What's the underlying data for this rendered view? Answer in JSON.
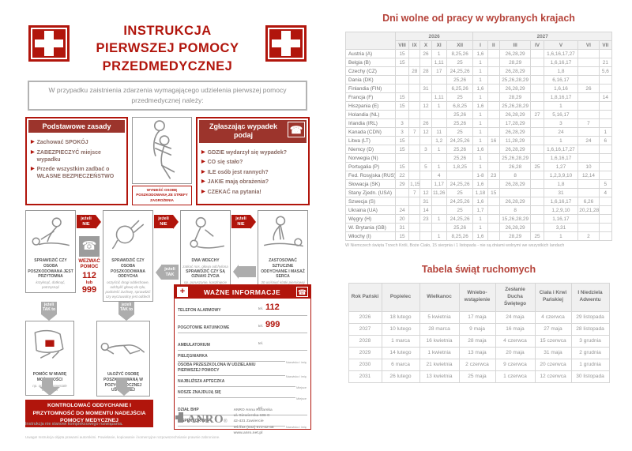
{
  "poster": {
    "title_lines": [
      "INSTRUKCJA",
      "PIERWSZEJ POMOCY",
      "PRZEDMEDYCZNEJ"
    ],
    "intro": "W przypadku zaistnienia zdarzenia wymagającego udzielenia pierwszej pomocy przedmedycznej należy:",
    "basic_rules": {
      "title": "Podstawowe zasady",
      "items": [
        "Zachować SPOKÓJ",
        "ZABEZPIECZYĆ miejsce wypadku",
        "Przede wszystkim zadbać o WŁASNE BEZPIECZEŃSTWO"
      ]
    },
    "evacuate_caption": "WYNIEŚĆ OSOBĘ POSZKODOWANĄ ZE STREFY ZAGROŻENIA",
    "report": {
      "title": "Zgłaszając wypadek podaj",
      "items": [
        "GDZIE wydarzył się wypadek?",
        "CO się stało?",
        "ILE osób jest rannych?",
        "JAKIE mają obrażenia?",
        "CZEKAĆ na pytania!"
      ]
    },
    "flow": {
      "if_no": "jeżeli NIE",
      "if_yes": "jeżeli TAK",
      "if_yes_then": "jeżeli TAK to",
      "call_help": {
        "label": "WEZWAĆ POMOC",
        "num1": "112",
        "or": "lub",
        "num2": "999"
      },
      "step1": {
        "title": "SPRAWDZIĆ CZY OSOBA POSZKODOWANA JEST PRZYTOMNA",
        "sub": "krzyknąć, dotknąć, potrząsnąć"
      },
      "step2": {
        "title": "SPRAWDZIĆ CZY OSOBA POSZKODOWANA ODDYCHA",
        "sub": "oczyścić drogi oddechowe, odchylić głowę do tyłu, podnieść żuchwę, sprawdzić czy wyczuwalny jest oddech"
      },
      "step3": {
        "title": "DWA WDECHY",
        "sub": "zatkać nos, głowa odchylona",
        "title2": "SPRAWDZIĆ CZY SĄ OZNAKI ŻYCIA",
        "sub2": "np. poruszanie, kaszlnięcie"
      },
      "step4": {
        "title": "ZASTOSOWAĆ SZTUCZNE ODDYCHANIE I MASAŻ SERCA",
        "sub": "30 uciśnięć klatki piersiowej na zmianę z 2 wdechami"
      },
      "step5": {
        "title": "POMÓC W MIARĘ MOŻLIWOŚCI",
        "sub": "np. opatrzyć powstałe obrażenia"
      },
      "step6": {
        "title": "UŁOŻYĆ OSOBĘ POSZKODOWANĄ W POZYCJI BOCZNEJ USTALONEJ"
      }
    },
    "important_info": {
      "title": "WAŻNE INFORMACJE",
      "rows": [
        {
          "label": "TELEFON ALARMOWY",
          "tel": "tel.",
          "value": "112",
          "note": ""
        },
        {
          "label": "POGOTOWIE RATUNKOWE",
          "tel": "tel.",
          "value": "999",
          "note": ""
        },
        {
          "label": "AMBULATORIUM",
          "tel": "tel.",
          "value": "",
          "note": ""
        },
        {
          "label": "PIELĘGNIARKA",
          "tel": "",
          "value": "",
          "note": "Nazwisko i imię"
        },
        {
          "label": "OSOBA PRZESZKOLONA W UDZIELANIU PIERWSZEJ POMOCY",
          "tel": "",
          "value": "",
          "note": "Nazwisko i imię"
        },
        {
          "label": "NAJBLIŻSZA APTECZKA",
          "tel": "",
          "value": "",
          "note": "Miejsce"
        },
        {
          "label": "NOSZE ZNAJDUJĄ SIĘ",
          "tel": "",
          "value": "",
          "note": "Miejsce"
        },
        {
          "label": "DZIAŁ BHP",
          "tel": "tel.",
          "value": "",
          "note": ""
        },
        {
          "label": "INSPEKTOR BHP",
          "tel": "",
          "value": "",
          "note": "Nazwisko i imię"
        }
      ]
    },
    "control_banner": "KONTROLOWAĆ ODDYCHANIE I PRZYTOMNOŚĆ DO MOMENTU NADEJŚCIA POMOCY MEDYCZNEJ",
    "note": "Instrukcja nie stanowi kompleksowego rozwiązania.",
    "copyright": "Uwaga! Instrukcja objęta prawami autorskimi. Powielanie, kopiowanie i komercyjne rozpowszechnianie prawnie zabronione.",
    "brand": {
      "name": "ANRO",
      "reg": "®",
      "address_lines": [
        "ANRO Anna Rotarska",
        "ul. Siewierska 196 C",
        "42-431 Zawiercie",
        "tel./fax (032) 672-42-48",
        "www.anro.net.pl"
      ]
    }
  },
  "holidays_table": {
    "title": "Dni wolne od pracy w wybranych krajach",
    "year1": "2026",
    "year2": "2027",
    "months_2026": [
      "VIII",
      "IX",
      "X",
      "XI",
      "XII"
    ],
    "months_2027": [
      "I",
      "II",
      "III",
      "IV",
      "V",
      "VI",
      "VII"
    ],
    "rows": [
      {
        "country": "Austria (A)",
        "cells": [
          "15",
          "",
          "26",
          "1",
          "8,25,26",
          "1,6",
          "",
          "26,28,29",
          "",
          "1,6,16,17,27",
          "",
          ""
        ]
      },
      {
        "country": "Belgia (B)",
        "cells": [
          "15",
          "",
          "",
          "1,11",
          "25",
          "1",
          "",
          "28,29",
          "",
          "1,6,16,17",
          "",
          "21"
        ]
      },
      {
        "country": "Czechy (CZ)",
        "cells": [
          "",
          "28",
          "28",
          "17",
          "24,25,26",
          "1",
          "",
          "26,28,29",
          "",
          "1,8",
          "",
          "5,6"
        ]
      },
      {
        "country": "Dania (DK)",
        "cells": [
          "",
          "",
          "",
          "",
          "25,26",
          "1",
          "",
          "25,26,28,29",
          "",
          "6,16,17",
          "",
          ""
        ]
      },
      {
        "country": "Finlandia (FIN)",
        "cells": [
          "",
          "",
          "31",
          "",
          "6,25,26",
          "1,6",
          "",
          "26,28,29",
          "",
          "1,6,16",
          "26",
          ""
        ]
      },
      {
        "country": "Francja (F)",
        "cells": [
          "15",
          "",
          "",
          "1,11",
          "25",
          "1",
          "",
          "28,29",
          "",
          "1,8,16,17",
          "",
          "14"
        ]
      },
      {
        "country": "Hiszpania (E)",
        "cells": [
          "15",
          "",
          "12",
          "1",
          "6,8,25",
          "1,6",
          "",
          "25,26,28,29",
          "",
          "1",
          "",
          ""
        ]
      },
      {
        "country": "Holandia (NL)",
        "cells": [
          "",
          "",
          "",
          "",
          "25,26",
          "1",
          "",
          "26,28,29",
          "27",
          "5,16,17",
          "",
          ""
        ]
      },
      {
        "country": "Irlandia (IRL)",
        "cells": [
          "3",
          "",
          "26",
          "",
          "25,26",
          "1",
          "",
          "17,28,29",
          "",
          "3",
          "7",
          ""
        ]
      },
      {
        "country": "Kanada (CDN)",
        "cells": [
          "3",
          "7",
          "12",
          "11",
          "25",
          "1",
          "",
          "26,28,29",
          "",
          "24",
          "",
          "1"
        ]
      },
      {
        "country": "Litwa (LT)",
        "cells": [
          "15",
          "",
          "",
          "1,2",
          "24,25,26",
          "1",
          "16",
          "11,28,29",
          "",
          "1",
          "24",
          "6"
        ]
      },
      {
        "country": "Niemcy (D)",
        "cells": [
          "15",
          "",
          "3",
          "1",
          "25,26",
          "1,6",
          "",
          "26,28,29",
          "",
          "1,6,16,17,27",
          "",
          ""
        ]
      },
      {
        "country": "Norwegia (N)",
        "cells": [
          "",
          "",
          "",
          "",
          "25,26",
          "1",
          "",
          "25,26,28,29",
          "",
          "1,6,16,17",
          "",
          ""
        ]
      },
      {
        "country": "Portugalia (P)",
        "cells": [
          "15",
          "",
          "5",
          "1",
          "1,8,25",
          "1",
          "",
          "26,28",
          "25",
          "1,27",
          "10",
          ""
        ]
      },
      {
        "country": "Fed. Rosyjska (RUS)",
        "cells": [
          "22",
          "",
          "",
          "4",
          "",
          "1-8",
          "23",
          "8",
          "",
          "1,2,3,9,10",
          "12,14",
          ""
        ]
      },
      {
        "country": "Słowacja (SK)",
        "cells": [
          "29",
          "1,15",
          "",
          "1,17",
          "24,25,26",
          "1,6",
          "",
          "26,28,29",
          "",
          "1,8",
          "",
          "5"
        ]
      },
      {
        "country": "Stany Zjedn. (USA)",
        "cells": [
          "",
          "7",
          "12",
          "11,26",
          "25",
          "1,18",
          "15",
          "",
          "",
          "31",
          "",
          "4"
        ]
      },
      {
        "country": "Szwecja (S)",
        "cells": [
          "",
          "",
          "31",
          "",
          "24,25,26",
          "1,6",
          "",
          "26,28,29",
          "",
          "1,6,16,17",
          "6,26",
          ""
        ]
      },
      {
        "country": "Ukraina (UA)",
        "cells": [
          "24",
          "",
          "14",
          "",
          "25",
          "1,7",
          "",
          "8",
          "",
          "1,2,9,10",
          "20,21,28",
          ""
        ]
      },
      {
        "country": "Węgry (H)",
        "cells": [
          "20",
          "",
          "23",
          "1",
          "24,25,26",
          "1",
          "",
          "15,26,28,29",
          "",
          "1,16,17",
          "",
          ""
        ]
      },
      {
        "country": "W. Brytania (GB)",
        "cells": [
          "31",
          "",
          "",
          "",
          "25,26",
          "1",
          "",
          "26,28,29",
          "",
          "3,31",
          "",
          ""
        ]
      },
      {
        "country": "Włochy (I)",
        "cells": [
          "15",
          "",
          "",
          "1",
          "8,25,26",
          "1,6",
          "",
          "28,29",
          "25",
          "1",
          "2",
          ""
        ]
      }
    ],
    "footnote": "W Niemczech święta Trzech Króli, Boże Ciało, 15 sierpnia i 1 listopada - nie są dniami wolnymi we wszystkich landach"
  },
  "feasts_table": {
    "title": "Tabela świąt ruchomych",
    "headers": [
      "Rok Pański",
      "Popielec",
      "Wielkanoc",
      "Wniebo- wstąpienie",
      "Zesłanie Ducha Świętego",
      "Ciała i Krwi Pańskiej",
      "I Niedziela Adwentu"
    ],
    "rows": [
      [
        "2026",
        "18 lutego",
        "5 kwietnia",
        "17 maja",
        "24 maja",
        "4 czerwca",
        "29 listopada"
      ],
      [
        "2027",
        "10 lutego",
        "28 marca",
        "9 maja",
        "16 maja",
        "27 maja",
        "28 listopada"
      ],
      [
        "2028",
        "1 marca",
        "16 kwietnia",
        "28 maja",
        "4 czerwca",
        "15 czerwca",
        "3 grudnia"
      ],
      [
        "2029",
        "14 lutego",
        "1 kwietnia",
        "13 maja",
        "20 maja",
        "31 maja",
        "2 grudnia"
      ],
      [
        "2030",
        "6 marca",
        "21 kwietnia",
        "2 czerwca",
        "9 czerwca",
        "20 czerwca",
        "1 grudnia"
      ],
      [
        "2031",
        "26 lutego",
        "13 kwietnia",
        "25 maja",
        "1 czerwca",
        "12 czerwca",
        "30 listopada"
      ]
    ]
  },
  "icons": {
    "phone": "☎",
    "cross": "+",
    "bullet": "▶"
  }
}
